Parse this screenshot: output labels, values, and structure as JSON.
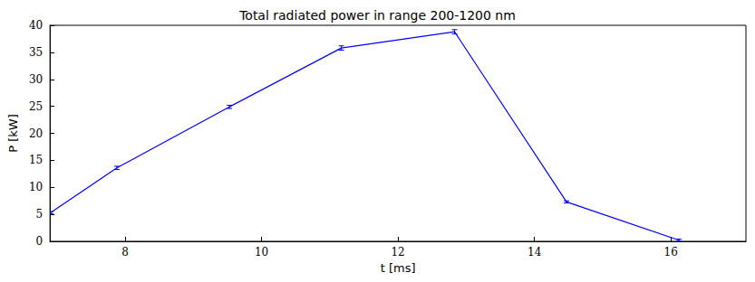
{
  "chart_data": {
    "type": "line",
    "title": "Total radiated power in range 200-1200 nm",
    "x_label": "t [ms]",
    "y_label": "P [kW]",
    "x": [
      6.91,
      7.88,
      9.53,
      11.17,
      12.83,
      14.47,
      16.12
    ],
    "values": [
      5.3,
      13.6,
      24.9,
      35.8,
      38.8,
      7.3,
      0.2
    ],
    "errors": [
      0.2,
      0.3,
      0.3,
      0.4,
      0.4,
      0.2,
      0.2
    ],
    "color": "#0000ff",
    "xlim": [
      6.9,
      17.1
    ],
    "xticks": [
      8,
      10,
      12,
      14,
      16
    ],
    "ylim": [
      0,
      40
    ],
    "yticks": [
      0,
      5,
      10,
      15,
      20,
      25,
      30,
      35,
      40
    ],
    "grid": false
  }
}
